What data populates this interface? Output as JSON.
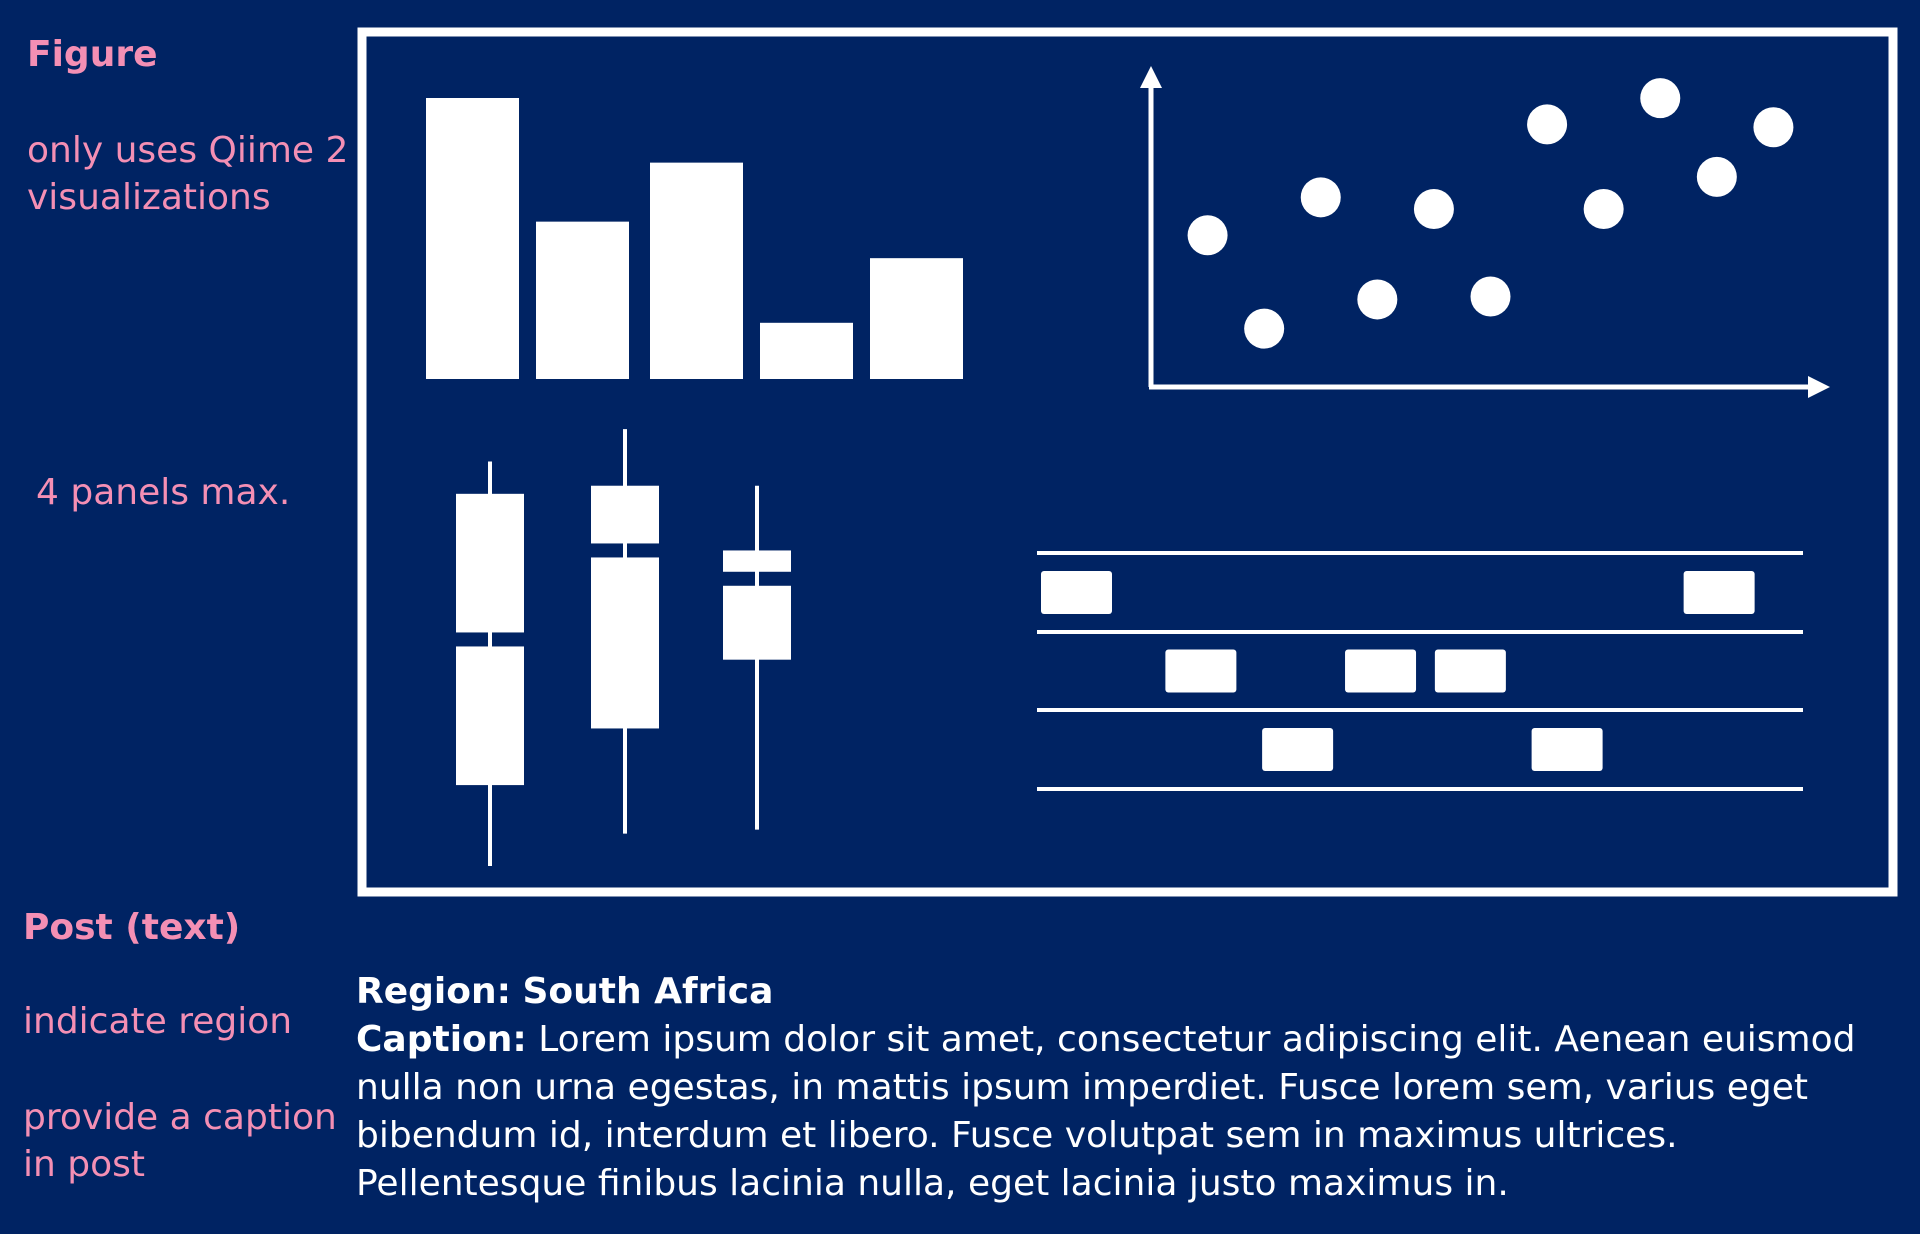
{
  "colors": {
    "background": "#002363",
    "annotation": "#f48fb4",
    "foreground": "#ffffff"
  },
  "notes": {
    "figure_heading": "Figure",
    "figure_rule_1_line_1": "only uses Qiime 2",
    "figure_rule_1_line_2": "visualizations",
    "figure_rule_2": "4 panels max.",
    "post_heading": "Post (text)",
    "post_rule_1": "indicate region",
    "post_rule_2_line_1": "provide a caption",
    "post_rule_2_line_2": "in post"
  },
  "post": {
    "region_label": "Region:",
    "region_value": "South Africa",
    "caption_label": "Caption:",
    "caption_text": "Lorem ipsum dolor sit amet, consectetur adipiscing elit. Aenean euismod nulla non urna egestas, in mattis ipsum imperdiet. Fusce lorem sem, varius eget bibendum id, interdum et libero. Fusce volutpat sem in maximus ultrices. Pellentesque finibus lacinia nulla, eget lacinia justo maximus in."
  },
  "chart_data": [
    {
      "type": "bar",
      "values": [
        100,
        56,
        77,
        20,
        43
      ],
      "ylim": [
        0,
        100
      ]
    },
    {
      "type": "scatter",
      "points": [
        [
          1,
          5.2
        ],
        [
          2,
          2.0
        ],
        [
          3,
          6.5
        ],
        [
          4,
          3.0
        ],
        [
          5,
          6.1
        ],
        [
          6,
          3.1
        ],
        [
          7,
          9.0
        ],
        [
          8,
          6.1
        ],
        [
          9,
          9.9
        ],
        [
          10,
          7.2
        ],
        [
          11,
          8.9
        ]
      ],
      "xlim": [
        0,
        12
      ],
      "ylim": [
        0,
        11
      ]
    },
    {
      "type": "box",
      "boxes": [
        {
          "min": 0,
          "q1": 20,
          "median": 56,
          "q3": 92,
          "max": 100
        },
        {
          "min": 8,
          "q1": 34,
          "median": 78,
          "q3": 94,
          "max": 108
        },
        {
          "min": 9,
          "q1": 51,
          "median": 71,
          "q3": 78,
          "max": 94
        }
      ],
      "ylim": [
        0,
        110
      ]
    },
    {
      "type": "timeline",
      "lanes": [
        [
          0.0,
          0.93
        ],
        [
          0.18,
          0.44,
          0.57
        ],
        [
          0.32,
          0.71
        ]
      ]
    }
  ]
}
